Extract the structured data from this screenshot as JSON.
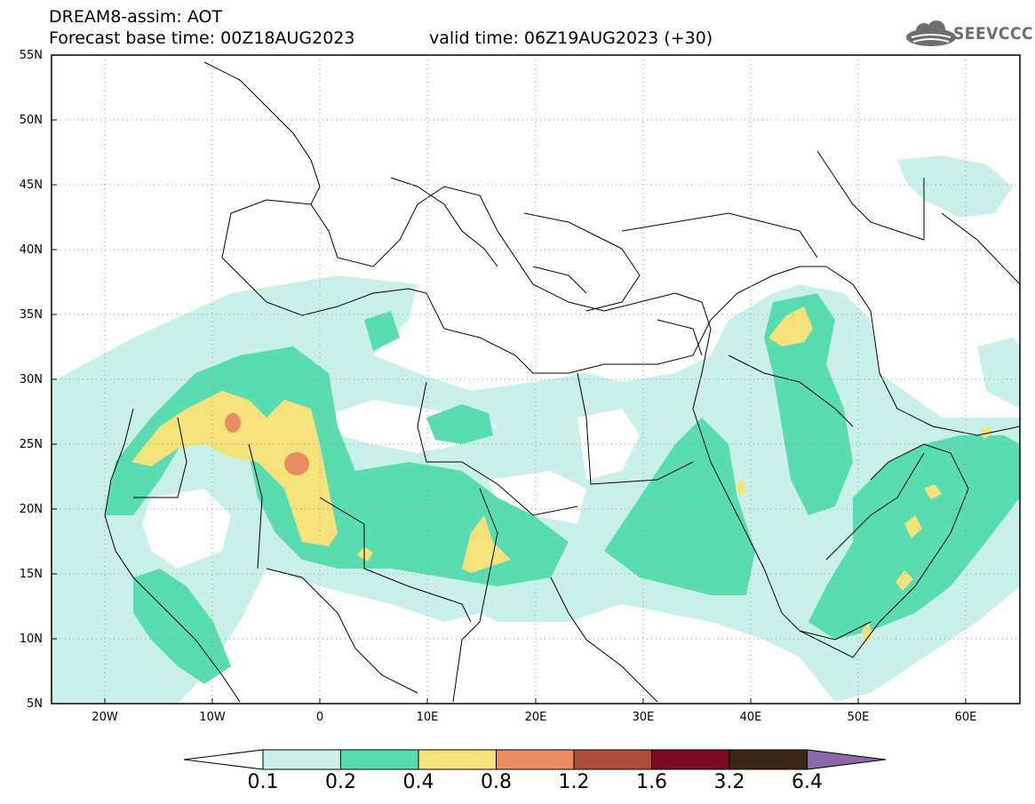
{
  "header": {
    "title": "DREAM8-assim: AOT",
    "base_time": "Forecast base time: 00Z18AUG2023",
    "valid_time": "valid time: 06Z19AUG2023 (+30)"
  },
  "logo": {
    "text": "SEEVCCC",
    "icon": "cloud-logo-icon"
  },
  "map": {
    "lat_labels": [
      "55N",
      "50N",
      "45N",
      "40N",
      "35N",
      "30N",
      "25N",
      "20N",
      "15N",
      "10N",
      "5N"
    ],
    "lon_labels": [
      "20W",
      "10W",
      "0",
      "10E",
      "20E",
      "30E",
      "40E",
      "50E",
      "60E"
    ],
    "lat_range": [
      5,
      55
    ],
    "lon_range": [
      -25,
      65
    ]
  },
  "colorbar": {
    "labels": [
      "0.1",
      "0.2",
      "0.4",
      "0.8",
      "1.2",
      "1.6",
      "3.2",
      "6.4"
    ],
    "colors": [
      "#c9f1ea",
      "#59ddb0",
      "#f5e27a",
      "#e98c64",
      "#ab4f3c",
      "#7d0a26",
      "#3b2617",
      "#8c68a8"
    ]
  }
}
